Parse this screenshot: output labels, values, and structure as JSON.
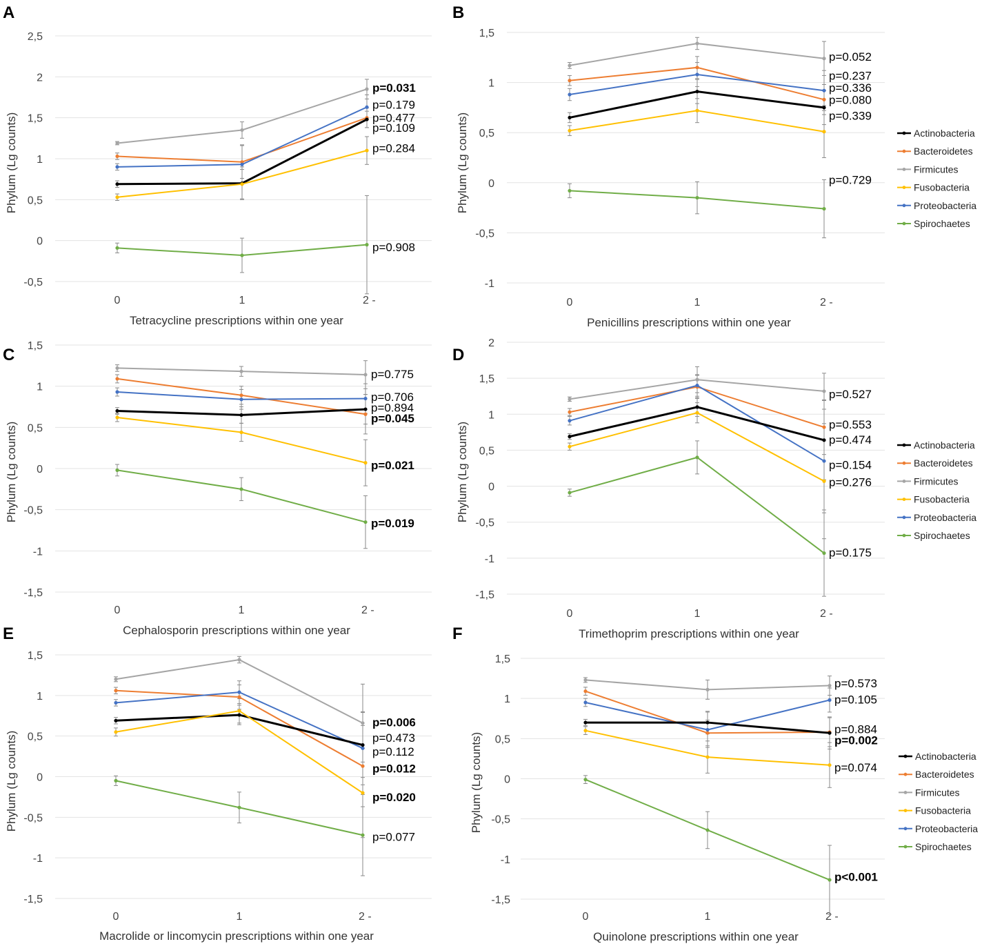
{
  "series_colors": {
    "Actinobacteria": "#000000",
    "Bacteroidetes": "#ED7D31",
    "Firmicutes": "#A5A5A5",
    "Fusobacteria": "#FFC000",
    "Proteobacteria": "#4472C4",
    "Spirochaetes": "#70AD47"
  },
  "legend": [
    "Actinobacteria",
    "Bacteroidetes",
    "Firmicutes",
    "Fusobacteria",
    "Proteobacteria",
    "Spirochaetes"
  ],
  "chart_data": [
    {
      "panel": "A",
      "type": "line",
      "categories": [
        "0",
        "1",
        "2 -"
      ],
      "xlabel": "Tetracycline prescriptions within one year",
      "ylabel": "Phylum (Lg counts)",
      "ylim": [
        -0.5,
        2.5
      ],
      "yticks": [
        -0.5,
        0,
        0.5,
        1,
        1.5,
        2,
        2.5
      ],
      "ytick_labels": [
        "-0,5",
        "0",
        "0,5",
        "1",
        "1,5",
        "2",
        "2,5"
      ],
      "legend_shown": false,
      "series": [
        {
          "name": "Firmicutes",
          "values": [
            1.19,
            1.35,
            1.85
          ],
          "err": [
            0.02,
            0.1,
            0.12
          ]
        },
        {
          "name": "Bacteroidetes",
          "values": [
            1.03,
            0.96,
            1.5
          ],
          "err": [
            0.04,
            0.2,
            0.12
          ]
        },
        {
          "name": "Proteobacteria",
          "values": [
            0.9,
            0.93,
            1.63
          ],
          "err": [
            0.04,
            0.24,
            0.15
          ]
        },
        {
          "name": "Actinobacteria",
          "values": [
            0.69,
            0.7,
            1.48
          ],
          "err": [
            0.04,
            0.2,
            0.1
          ]
        },
        {
          "name": "Fusobacteria",
          "values": [
            0.53,
            0.69,
            1.1
          ],
          "err": [
            0.04,
            0.18,
            0.17
          ]
        },
        {
          "name": "Spirochaetes",
          "values": [
            -0.09,
            -0.18,
            -0.05
          ],
          "err": [
            0.06,
            0.21,
            0.6
          ]
        }
      ],
      "pvalues": [
        {
          "text": "p=0.031",
          "bold": true,
          "y": 1.87
        },
        {
          "text": "p=0.179",
          "bold": false,
          "y": 1.66
        },
        {
          "text": "p=0.477",
          "bold": false,
          "y": 1.5
        },
        {
          "text": "p=0.109",
          "bold": false,
          "y": 1.38
        },
        {
          "text": "p=0.284",
          "bold": false,
          "y": 1.13
        },
        {
          "text": "p=0.908",
          "bold": false,
          "y": -0.08
        }
      ]
    },
    {
      "panel": "B",
      "type": "line",
      "categories": [
        "0",
        "1",
        "2 -"
      ],
      "xlabel": "Penicillins prescriptions within one year",
      "ylabel": "Phylum (Lg counts)",
      "ylim": [
        -1,
        1.5
      ],
      "yticks": [
        -1,
        -0.5,
        0,
        0.5,
        1,
        1.5
      ],
      "ytick_labels": [
        "-1",
        "-0,5",
        "0",
        "0,5",
        "1",
        "1,5"
      ],
      "legend_shown": true,
      "series": [
        {
          "name": "Firmicutes",
          "values": [
            1.17,
            1.39,
            1.24
          ],
          "err": [
            0.03,
            0.06,
            0.17
          ]
        },
        {
          "name": "Bacteroidetes",
          "values": [
            1.02,
            1.15,
            0.83
          ],
          "err": [
            0.05,
            0.11,
            0.15
          ]
        },
        {
          "name": "Proteobacteria",
          "values": [
            0.88,
            1.08,
            0.92
          ],
          "err": [
            0.06,
            0.12,
            0.2
          ]
        },
        {
          "name": "Actinobacteria",
          "values": [
            0.65,
            0.91,
            0.75
          ],
          "err": [
            0.05,
            0.12,
            0.17
          ]
        },
        {
          "name": "Fusobacteria",
          "values": [
            0.52,
            0.72,
            0.51
          ],
          "err": [
            0.05,
            0.12,
            0.26
          ]
        },
        {
          "name": "Spirochaetes",
          "values": [
            -0.08,
            -0.15,
            -0.26
          ],
          "err": [
            0.07,
            0.16,
            0.29
          ]
        }
      ],
      "pvalues": [
        {
          "text": "p=0.052",
          "bold": false,
          "y": 1.26
        },
        {
          "text": "p=0.237",
          "bold": false,
          "y": 1.07
        },
        {
          "text": "p=0.336",
          "bold": false,
          "y": 0.95
        },
        {
          "text": "p=0.080",
          "bold": false,
          "y": 0.83
        },
        {
          "text": "p=0.339",
          "bold": false,
          "y": 0.67
        },
        {
          "text": "p=0.729",
          "bold": false,
          "y": 0.03
        }
      ]
    },
    {
      "panel": "C",
      "type": "line",
      "categories": [
        "0",
        "1",
        "2 -"
      ],
      "xlabel": "Cephalosporin prescriptions within one year",
      "ylabel": "Phylum (Lg counts)",
      "ylim": [
        -1.5,
        1.5
      ],
      "yticks": [
        -1.5,
        -1,
        -0.5,
        0,
        0.5,
        1,
        1.5
      ],
      "ytick_labels": [
        "-1,5",
        "-1",
        "-0,5",
        "0",
        "0,5",
        "1",
        "1,5"
      ],
      "legend_shown": false,
      "series": [
        {
          "name": "Firmicutes",
          "values": [
            1.22,
            1.18,
            1.14
          ],
          "err": [
            0.04,
            0.06,
            0.17
          ]
        },
        {
          "name": "Bacteroidetes",
          "values": [
            1.09,
            0.89,
            0.66
          ],
          "err": [
            0.05,
            0.11,
            0.24
          ]
        },
        {
          "name": "Proteobacteria",
          "values": [
            0.93,
            0.84,
            0.85
          ],
          "err": [
            0.05,
            0.12,
            0.18
          ]
        },
        {
          "name": "Actinobacteria",
          "values": [
            0.7,
            0.65,
            0.72
          ],
          "err": [
            0.04,
            0.1,
            0.18
          ]
        },
        {
          "name": "Fusobacteria",
          "values": [
            0.62,
            0.44,
            0.07
          ],
          "err": [
            0.05,
            0.11,
            0.28
          ]
        },
        {
          "name": "Spirochaetes",
          "values": [
            -0.02,
            -0.25,
            -0.65
          ],
          "err": [
            0.07,
            0.14,
            0.32
          ]
        }
      ],
      "pvalues": [
        {
          "text": "p=0.775",
          "bold": false,
          "y": 1.15
        },
        {
          "text": "p=0.706",
          "bold": false,
          "y": 0.87
        },
        {
          "text": "p=0.894",
          "bold": false,
          "y": 0.74
        },
        {
          "text": "p=0.045",
          "bold": true,
          "y": 0.61
        },
        {
          "text": "p=0.021",
          "bold": true,
          "y": 0.04
        },
        {
          "text": "p=0.019",
          "bold": true,
          "y": -0.66
        }
      ]
    },
    {
      "panel": "D",
      "type": "line",
      "categories": [
        "0",
        "1",
        "2 -"
      ],
      "xlabel": "Trimethoprim prescriptions within one year",
      "ylabel": "Phylum (Lg counts)",
      "ylim": [
        -1.5,
        2
      ],
      "yticks": [
        -1.5,
        -1,
        -0.5,
        0,
        0.5,
        1,
        1.5,
        2
      ],
      "ytick_labels": [
        "-1,5",
        "-1",
        "-0,5",
        "0",
        "0,5",
        "1",
        "1,5",
        "2"
      ],
      "legend_shown": true,
      "series": [
        {
          "name": "Firmicutes",
          "values": [
            1.21,
            1.48,
            1.32
          ],
          "err": [
            0.03,
            0.18,
            0.25
          ]
        },
        {
          "name": "Bacteroidetes",
          "values": [
            1.03,
            1.38,
            0.82
          ],
          "err": [
            0.05,
            0.16,
            0.38
          ]
        },
        {
          "name": "Proteobacteria",
          "values": [
            0.91,
            1.4,
            0.35
          ],
          "err": [
            0.06,
            0.15,
            0.72
          ]
        },
        {
          "name": "Actinobacteria",
          "values": [
            0.69,
            1.1,
            0.64
          ],
          "err": [
            0.04,
            0.13,
            0.55
          ]
        },
        {
          "name": "Fusobacteria",
          "values": [
            0.55,
            1.02,
            0.07
          ],
          "err": [
            0.05,
            0.14,
            0.8
          ]
        },
        {
          "name": "Spirochaetes",
          "values": [
            -0.09,
            0.4,
            -0.93
          ],
          "err": [
            0.05,
            0.23,
            0.6
          ]
        }
      ],
      "pvalues": [
        {
          "text": "p=0.527",
          "bold": false,
          "y": 1.28
        },
        {
          "text": "p=0.553",
          "bold": false,
          "y": 0.86
        },
        {
          "text": "p=0.474",
          "bold": false,
          "y": 0.65
        },
        {
          "text": "p=0.154",
          "bold": false,
          "y": 0.3
        },
        {
          "text": "p=0.276",
          "bold": false,
          "y": 0.06
        },
        {
          "text": "p=0.175",
          "bold": false,
          "y": -0.92
        }
      ]
    },
    {
      "panel": "E",
      "type": "line",
      "categories": [
        "0",
        "1",
        "2 -"
      ],
      "xlabel": "Macrolide or lincomycin prescriptions within one year",
      "ylabel": "Phylum (Lg counts)",
      "ylim": [
        -1.5,
        1.5
      ],
      "yticks": [
        -1.5,
        -1,
        -0.5,
        0,
        0.5,
        1,
        1.5
      ],
      "ytick_labels": [
        "-1,5",
        "-1",
        "-0,5",
        "0",
        "0,5",
        "1",
        "1,5"
      ],
      "legend_shown": false,
      "series": [
        {
          "name": "Firmicutes",
          "values": [
            1.2,
            1.44,
            0.66
          ],
          "err": [
            0.03,
            0.04,
            0.48
          ]
        },
        {
          "name": "Bacteroidetes",
          "values": [
            1.06,
            0.98,
            0.13
          ],
          "err": [
            0.04,
            0.15,
            0.5
          ]
        },
        {
          "name": "Proteobacteria",
          "values": [
            0.91,
            1.04,
            0.35
          ],
          "err": [
            0.04,
            0.14,
            0.45
          ]
        },
        {
          "name": "Actinobacteria",
          "values": [
            0.69,
            0.76,
            0.39
          ],
          "err": [
            0.04,
            0.12,
            0.4
          ]
        },
        {
          "name": "Fusobacteria",
          "values": [
            0.55,
            0.81,
            -0.2
          ],
          "err": [
            0.05,
            0.15,
            0.55
          ]
        },
        {
          "name": "Spirochaetes",
          "values": [
            -0.05,
            -0.38,
            -0.72
          ],
          "err": [
            0.06,
            0.19,
            0.5
          ]
        }
      ],
      "pvalues": [
        {
          "text": "p=0.006",
          "bold": true,
          "y": 0.67
        },
        {
          "text": "p=0.473",
          "bold": false,
          "y": 0.48
        },
        {
          "text": "p=0.112",
          "bold": false,
          "y": 0.31
        },
        {
          "text": "p=0.012",
          "bold": true,
          "y": 0.1
        },
        {
          "text": "p=0.020",
          "bold": true,
          "y": -0.25
        },
        {
          "text": "p=0.077",
          "bold": false,
          "y": -0.74
        }
      ]
    },
    {
      "panel": "F",
      "type": "line",
      "categories": [
        "0",
        "1",
        "2 -"
      ],
      "xlabel": "Quinolone prescriptions within one year",
      "ylabel": "Phylum (Lg counts)",
      "ylim": [
        -1.5,
        1.5
      ],
      "yticks": [
        -1.5,
        -1,
        -0.5,
        0,
        0.5,
        1,
        1.5
      ],
      "ytick_labels": [
        "-1,5",
        "-1",
        "-0,5",
        "0",
        "0,5",
        "1",
        "1,5"
      ],
      "legend_shown": true,
      "series": [
        {
          "name": "Firmicutes",
          "values": [
            1.23,
            1.11,
            1.16
          ],
          "err": [
            0.03,
            0.12,
            0.12
          ]
        },
        {
          "name": "Bacteroidetes",
          "values": [
            1.09,
            0.57,
            0.58
          ],
          "err": [
            0.05,
            0.16,
            0.18
          ]
        },
        {
          "name": "Proteobacteria",
          "values": [
            0.95,
            0.61,
            0.98
          ],
          "err": [
            0.05,
            0.22,
            0.15
          ]
        },
        {
          "name": "Actinobacteria",
          "values": [
            0.7,
            0.7,
            0.57
          ],
          "err": [
            0.04,
            0.14,
            0.2
          ]
        },
        {
          "name": "Fusobacteria",
          "values": [
            0.6,
            0.27,
            0.17
          ],
          "err": [
            0.05,
            0.2,
            0.28
          ]
        },
        {
          "name": "Spirochaetes",
          "values": [
            -0.01,
            -0.64,
            -1.26
          ],
          "err": [
            0.05,
            0.23,
            0.43
          ]
        }
      ],
      "pvalues": [
        {
          "text": "p=0.573",
          "bold": false,
          "y": 1.19
        },
        {
          "text": "p=0.105",
          "bold": false,
          "y": 0.99
        },
        {
          "text": "p=0.884",
          "bold": false,
          "y": 0.62
        },
        {
          "text": "p=0.002",
          "bold": true,
          "y": 0.48
        },
        {
          "text": "p=0.074",
          "bold": false,
          "y": 0.14
        },
        {
          "text": "p<0.001",
          "bold": true,
          "y": -1.22
        }
      ]
    }
  ]
}
